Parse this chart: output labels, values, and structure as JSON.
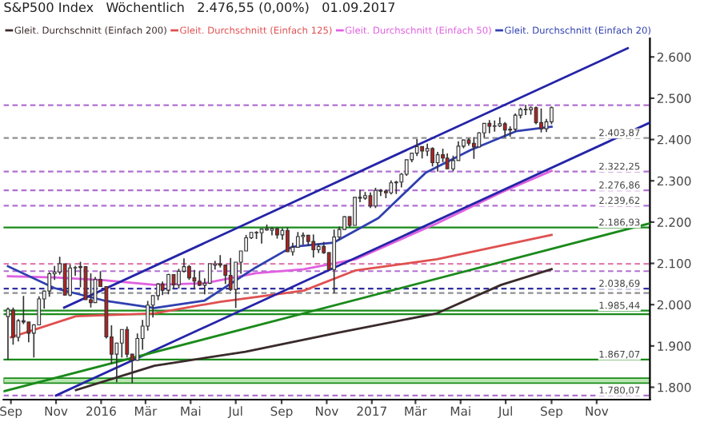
{
  "chart_data": {
    "type": "candlestick",
    "title": "S&P500 Index   Wöchentlich   2.476,55 (0,00%)   01.09.2017",
    "x": [
      "2015-08-28",
      "2015-09-04",
      "2015-09-11",
      "2015-09-18",
      "2015-09-25",
      "2015-10-02",
      "2015-10-09",
      "2015-10-16",
      "2015-10-23",
      "2015-10-30",
      "2015-11-06",
      "2015-11-13",
      "2015-11-20",
      "2015-11-27",
      "2015-12-04",
      "2015-12-11",
      "2015-12-18",
      "2015-12-24",
      "2015-12-31",
      "2016-01-08",
      "2016-01-15",
      "2016-01-22",
      "2016-01-29",
      "2016-02-05",
      "2016-02-12",
      "2016-02-19",
      "2016-02-26",
      "2016-03-04",
      "2016-03-11",
      "2016-03-18",
      "2016-03-24",
      "2016-04-01",
      "2016-04-08",
      "2016-04-15",
      "2016-04-22",
      "2016-04-29",
      "2016-05-06",
      "2016-05-13",
      "2016-05-20",
      "2016-05-27",
      "2016-06-03",
      "2016-06-10",
      "2016-06-17",
      "2016-06-24",
      "2016-07-01",
      "2016-07-08",
      "2016-07-15",
      "2016-07-22",
      "2016-07-29",
      "2016-08-05",
      "2016-08-12",
      "2016-08-19",
      "2016-08-26",
      "2016-09-02",
      "2016-09-09",
      "2016-09-16",
      "2016-09-23",
      "2016-09-30",
      "2016-10-07",
      "2016-10-14",
      "2016-10-21",
      "2016-10-28",
      "2016-11-04",
      "2016-11-11",
      "2016-11-18",
      "2016-11-25",
      "2016-12-02",
      "2016-12-09",
      "2016-12-16",
      "2016-12-23",
      "2016-12-30",
      "2017-01-06",
      "2017-01-13",
      "2017-01-20",
      "2017-01-27",
      "2017-02-03",
      "2017-02-10",
      "2017-02-17",
      "2017-02-24",
      "2017-03-03",
      "2017-03-10",
      "2017-03-17",
      "2017-03-24",
      "2017-03-31",
      "2017-04-07",
      "2017-04-13",
      "2017-04-21",
      "2017-04-28",
      "2017-05-05",
      "2017-05-12",
      "2017-05-19",
      "2017-05-26",
      "2017-06-02",
      "2017-06-09",
      "2017-06-16",
      "2017-06-23",
      "2017-06-30",
      "2017-07-07",
      "2017-07-14",
      "2017-07-21",
      "2017-07-28",
      "2017-08-04",
      "2017-08-11",
      "2017-08-18",
      "2017-08-25",
      "2017-09-01"
    ],
    "ohlc": [
      [
        1971,
        1993,
        1867,
        1989
      ],
      [
        1987,
        1993,
        1903,
        1921
      ],
      [
        1921,
        1965,
        1911,
        1961
      ],
      [
        1961,
        2021,
        1953,
        1958
      ],
      [
        1958,
        1958,
        1909,
        1931
      ],
      [
        1931,
        1953,
        1872,
        1951
      ],
      [
        1951,
        2020,
        1951,
        2014
      ],
      [
        2014,
        2034,
        1990,
        2033
      ],
      [
        2033,
        2079,
        2019,
        2075
      ],
      [
        2075,
        2094,
        2060,
        2079
      ],
      [
        2079,
        2116,
        2073,
        2099
      ],
      [
        2099,
        2099,
        2022,
        2023
      ],
      [
        2023,
        2097,
        2020,
        2089
      ],
      [
        2089,
        2094,
        2070,
        2090
      ],
      [
        2090,
        2104,
        2042,
        2092
      ],
      [
        2092,
        2093,
        2012,
        2012
      ],
      [
        2012,
        2076,
        1993,
        2005
      ],
      [
        2005,
        2067,
        2005,
        2061
      ],
      [
        2061,
        2081,
        2043,
        2044
      ],
      [
        2044,
        2044,
        1918,
        1922
      ],
      [
        1922,
        1950,
        1857,
        1880
      ],
      [
        1880,
        1908,
        1812,
        1907
      ],
      [
        1907,
        1940,
        1872,
        1940
      ],
      [
        1940,
        1947,
        1872,
        1880
      ],
      [
        1880,
        1881,
        1810,
        1865
      ],
      [
        1865,
        1930,
        1865,
        1918
      ],
      [
        1918,
        1963,
        1891,
        1948
      ],
      [
        1948,
        2009,
        1937,
        1999
      ],
      [
        1999,
        2022,
        1969,
        2022
      ],
      [
        2022,
        2052,
        2011,
        2050
      ],
      [
        2050,
        2056,
        2023,
        2035
      ],
      [
        2035,
        2075,
        2025,
        2073
      ],
      [
        2073,
        2073,
        2039,
        2048
      ],
      [
        2048,
        2087,
        2039,
        2081
      ],
      [
        2081,
        2112,
        2078,
        2092
      ],
      [
        2092,
        2096,
        2060,
        2065
      ],
      [
        2065,
        2084,
        2039,
        2057
      ],
      [
        2057,
        2081,
        2045,
        2047
      ],
      [
        2047,
        2064,
        2025,
        2052
      ],
      [
        2052,
        2099,
        2050,
        2099
      ],
      [
        2096,
        2106,
        2085,
        2099
      ],
      [
        2099,
        2120,
        2090,
        2096
      ],
      [
        2096,
        2096,
        2050,
        2071
      ],
      [
        2071,
        2113,
        2033,
        2037
      ],
      [
        2037,
        2103,
        1992,
        2103
      ],
      [
        2103,
        2130,
        2075,
        2130
      ],
      [
        2130,
        2169,
        2130,
        2162
      ],
      [
        2162,
        2175,
        2159,
        2175
      ],
      [
        2175,
        2178,
        2159,
        2174
      ],
      [
        2174,
        2183,
        2148,
        2183
      ],
      [
        2181,
        2194,
        2179,
        2184
      ],
      [
        2180,
        2187,
        2168,
        2184
      ],
      [
        2184,
        2187,
        2160,
        2169
      ],
      [
        2169,
        2185,
        2157,
        2180
      ],
      [
        2180,
        2187,
        2128,
        2128
      ],
      [
        2128,
        2150,
        2119,
        2139
      ],
      [
        2139,
        2176,
        2139,
        2165
      ],
      [
        2165,
        2175,
        2145,
        2168
      ],
      [
        2168,
        2169,
        2142,
        2153
      ],
      [
        2153,
        2170,
        2114,
        2133
      ],
      [
        2133,
        2148,
        2125,
        2141
      ],
      [
        2141,
        2152,
        2123,
        2126
      ],
      [
        2126,
        2127,
        2084,
        2085
      ],
      [
        2085,
        2182,
        2028,
        2164
      ],
      [
        2164,
        2189,
        2156,
        2182
      ],
      [
        2182,
        2214,
        2182,
        2213
      ],
      [
        2213,
        2214,
        2187,
        2192
      ],
      [
        2192,
        2260,
        2192,
        2260
      ],
      [
        2260,
        2278,
        2248,
        2258
      ],
      [
        2258,
        2273,
        2254,
        2264
      ],
      [
        2264,
        2272,
        2234,
        2239
      ],
      [
        2239,
        2283,
        2234,
        2277
      ],
      [
        2277,
        2280,
        2263,
        2275
      ],
      [
        2275,
        2279,
        2258,
        2271
      ],
      [
        2271,
        2301,
        2267,
        2295
      ],
      [
        2295,
        2300,
        2268,
        2297
      ],
      [
        2297,
        2319,
        2284,
        2316
      ],
      [
        2316,
        2351,
        2312,
        2351
      ],
      [
        2351,
        2368,
        2345,
        2367
      ],
      [
        2367,
        2401,
        2360,
        2383
      ],
      [
        2383,
        2383,
        2354,
        2372
      ],
      [
        2372,
        2390,
        2360,
        2378
      ],
      [
        2378,
        2381,
        2335,
        2344
      ],
      [
        2344,
        2370,
        2322,
        2363
      ],
      [
        2363,
        2378,
        2345,
        2355
      ],
      [
        2355,
        2366,
        2329,
        2329
      ],
      [
        2329,
        2361,
        2323,
        2349
      ],
      [
        2349,
        2396,
        2349,
        2384
      ],
      [
        2384,
        2400,
        2379,
        2399
      ],
      [
        2399,
        2403,
        2385,
        2391
      ],
      [
        2391,
        2406,
        2353,
        2382
      ],
      [
        2382,
        2418,
        2382,
        2416
      ],
      [
        2416,
        2440,
        2405,
        2439
      ],
      [
        2439,
        2447,
        2415,
        2432
      ],
      [
        2432,
        2446,
        2419,
        2433
      ],
      [
        2433,
        2454,
        2430,
        2438
      ],
      [
        2438,
        2442,
        2405,
        2423
      ],
      [
        2423,
        2432,
        2407,
        2425
      ],
      [
        2425,
        2463,
        2419,
        2459
      ],
      [
        2459,
        2477,
        2451,
        2473
      ],
      [
        2473,
        2484,
        2459,
        2472
      ],
      [
        2472,
        2480,
        2460,
        2477
      ],
      [
        2477,
        2480,
        2437,
        2441
      ],
      [
        2441,
        2475,
        2417,
        2426
      ],
      [
        2426,
        2450,
        2418,
        2443
      ],
      [
        2443,
        2480,
        2437,
        2477
      ]
    ],
    "colors": [
      "#f2f2f2",
      "#b22222",
      "#f2f2f2",
      "#b22222",
      "#b22222",
      "#f2f2f2",
      "#f2f2f2",
      "#f2f2f2",
      "#f2f2f2",
      "#f2f2f2",
      "#f2f2f2",
      "#b22222",
      "#f2f2f2",
      "#f2f2f2",
      "#f2f2f2",
      "#b22222",
      "#b22222",
      "#f2f2f2",
      "#b22222",
      "#b22222",
      "#b22222",
      "#f2f2f2",
      "#f2f2f2",
      "#b22222",
      "#b22222",
      "#f2f2f2",
      "#f2f2f2",
      "#f2f2f2",
      "#f2f2f2",
      "#f2f2f2",
      "#b22222",
      "#f2f2f2",
      "#b22222",
      "#f2f2f2",
      "#f2f2f2",
      "#b22222",
      "#b22222",
      "#b22222",
      "#f2f2f2",
      "#f2f2f2",
      "#f2f2f2",
      "#b22222",
      "#b22222",
      "#b22222",
      "#f2f2f2",
      "#f2f2f2",
      "#f2f2f2",
      "#f2f2f2",
      "#b22222",
      "#f2f2f2",
      "#f2f2f2",
      "#f2f2f2",
      "#b22222",
      "#f2f2f2",
      "#b22222",
      "#f2f2f2",
      "#f2f2f2",
      "#f2f2f2",
      "#b22222",
      "#b22222",
      "#f2f2f2",
      "#b22222",
      "#b22222",
      "#f2f2f2",
      "#f2f2f2",
      "#f2f2f2",
      "#b22222",
      "#f2f2f2",
      "#b22222",
      "#f2f2f2",
      "#b22222",
      "#f2f2f2",
      "#b22222",
      "#b22222",
      "#f2f2f2",
      "#f2f2f2",
      "#f2f2f2",
      "#f2f2f2",
      "#f2f2f2",
      "#f2f2f2",
      "#b22222",
      "#f2f2f2",
      "#b22222",
      "#f2f2f2",
      "#b22222",
      "#b22222",
      "#f2f2f2",
      "#f2f2f2",
      "#f2f2f2",
      "#b22222",
      "#b22222",
      "#f2f2f2",
      "#f2f2f2",
      "#b22222",
      "#f2f2f2",
      "#f2f2f2",
      "#b22222",
      "#f2f2f2",
      "#f2f2f2",
      "#f2f2f2",
      "#b22222",
      "#f2f2f2",
      "#b22222",
      "#b22222",
      "#f2f2f2",
      "#f2f2f2"
    ],
    "series": [
      {
        "type": "line",
        "name": "Gleit. Durchschnitt (Einfach 200)",
        "color": "#3a2a2a",
        "x": [
          "2015-11-28",
          "2016-03-13",
          "2016-07-14",
          "2016-11-13",
          "2017-03-30",
          "2017-06-25",
          "2017-09-01"
        ],
        "values": [
          1793,
          1852,
          1886,
          1931,
          1979,
          2048,
          2086
        ]
      },
      {
        "type": "line",
        "name": "Gleit. Durchschnitt (Einfach 125)",
        "color": "#e05050",
        "x": [
          "2015-09-01",
          "2015-11-28",
          "2016-03-13",
          "2016-06-10",
          "2016-10-01",
          "2016-12-10",
          "2017-03-30",
          "2017-09-01"
        ],
        "values": [
          1921,
          1972,
          1979,
          2007,
          2034,
          2083,
          2110,
          2169
        ]
      },
      {
        "type": "line",
        "name": "Gleit. Durchschnitt (Einfach 50)",
        "color": "#e060e0",
        "x": [
          "2015-08-28",
          "2015-10-30",
          "2016-01-05",
          "2016-03-13",
          "2016-05-20",
          "2016-07-28",
          "2016-10-01",
          "2016-12-10",
          "2017-03-30",
          "2017-06-25",
          "2017-09-01"
        ],
        "values": [
          2069,
          2066,
          2059,
          2048,
          2052,
          2076,
          2086,
          2110,
          2197,
          2272,
          2324
        ]
      },
      {
        "type": "line",
        "name": "Gleit. Durchschnitt (Einfach 20)",
        "color": "#3040b0",
        "x": [
          "2015-08-28",
          "2015-10-30",
          "2016-01-05",
          "2016-03-13",
          "2016-05-20",
          "2016-07-28",
          "2016-09-15",
          "2016-11-10",
          "2017-01-10",
          "2017-03-15",
          "2017-05-15",
          "2017-07-15",
          "2017-09-01"
        ],
        "values": [
          2093,
          2040,
          2010,
          1992,
          2010,
          2090,
          2140,
          2150,
          2210,
          2320,
          2375,
          2420,
          2431
        ]
      },
      {
        "type": "line",
        "color": "#2424a8",
        "x": [
          "2015-11-12",
          "2017-12-13"
        ],
        "values": [
          1993,
          2621
        ]
      },
      {
        "type": "line",
        "color": "#2424a8",
        "x": [
          "2015-11-01",
          "2018-01-12"
        ],
        "values": [
          1780,
          2441
        ]
      },
      {
        "type": "line",
        "color": "#1a8a1a",
        "x": [
          "2015-08-22",
          "2018-01-12"
        ],
        "values": [
          1790,
          2197
        ]
      }
    ],
    "ref_lines": [
      {
        "axis": "y",
        "value": 2483,
        "color": "#b070d0",
        "line_style": "dashed"
      },
      {
        "axis": "y",
        "value": 2403.87,
        "label": "2.403,87",
        "color": "#909090",
        "line_style": "dashed"
      },
      {
        "axis": "y",
        "value": 2322.25,
        "label": "2.322,25",
        "color": "#b070d0",
        "line_style": "dashed"
      },
      {
        "axis": "y",
        "value": 2276.86,
        "label": "2.276,86",
        "color": "#b070d0",
        "line_style": "dashed"
      },
      {
        "axis": "y",
        "value": 2239.62,
        "label": "2.239,62",
        "color": "#b070d0",
        "line_style": "dashed"
      },
      {
        "axis": "y",
        "value": 2186.93,
        "label": "2.186,93",
        "color": "#1a8a1a",
        "line_style": "solid"
      },
      {
        "axis": "y",
        "value": 2099,
        "color": "#e080b0",
        "line_style": "dashed"
      },
      {
        "axis": "y",
        "value": 2081.18,
        "color": "#b070d0",
        "line_style": "dashed"
      },
      {
        "axis": "y",
        "value": 2038.69,
        "label": "2.038,69",
        "color": "#3030a0",
        "line_style": "dashed"
      },
      {
        "axis": "y",
        "value": 2028,
        "color": "#909090",
        "line_style": "dashed"
      },
      {
        "axis": "y",
        "value": 1985.44,
        "label": "1.985,44",
        "color": "#1a8a1a",
        "line_style": "solid"
      },
      {
        "axis": "y",
        "value": 1977,
        "color": "#1a8a1a",
        "line_style": "solid"
      },
      {
        "axis": "y",
        "value": 1867.07,
        "label": "1.867,07",
        "color": "#1a8a1a",
        "line_style": "solid"
      },
      {
        "axis": "y",
        "value": 1780.07,
        "label": "1.780,07",
        "color": "#b070d0",
        "line_style": "dashed"
      }
    ],
    "bands": [
      {
        "axis": "y",
        "from": 1810,
        "to": 1822,
        "color": "#b8e6b0"
      }
    ],
    "xlim": [
      "2015-08-22",
      "2018-01-12"
    ],
    "xticks": [
      {
        "value": "2015-09-01",
        "label": "Sep"
      },
      {
        "value": "2015-11-01",
        "label": "Nov"
      },
      {
        "value": "2016-01-01",
        "label": "2016"
      },
      {
        "value": "2016-03-01",
        "label": "Mär"
      },
      {
        "value": "2016-05-01",
        "label": "Mai"
      },
      {
        "value": "2016-07-01",
        "label": "Jul"
      },
      {
        "value": "2016-09-01",
        "label": "Sep"
      },
      {
        "value": "2016-11-01",
        "label": "Nov"
      },
      {
        "value": "2017-01-01",
        "label": "2017"
      },
      {
        "value": "2017-03-01",
        "label": "Mär"
      },
      {
        "value": "2017-05-01",
        "label": "Mai"
      },
      {
        "value": "2017-07-01",
        "label": "Jul"
      },
      {
        "value": "2017-09-01",
        "label": "Sep"
      },
      {
        "value": "2017-11-01",
        "label": "Nov"
      }
    ],
    "ylim": [
      1770,
      2645
    ],
    "yticks": [
      {
        "value": 1800,
        "label": "1.800"
      },
      {
        "value": 1900,
        "label": "1.900"
      },
      {
        "value": 2000,
        "label": "2.000"
      },
      {
        "value": 2100,
        "label": "2.100"
      },
      {
        "value": 2200,
        "label": "2.200"
      },
      {
        "value": 2300,
        "label": "2.300"
      },
      {
        "value": 2400,
        "label": "2.400"
      },
      {
        "value": 2500,
        "label": "2.500"
      },
      {
        "value": 2600,
        "label": "2.600"
      }
    ],
    "legend": "top left",
    "grid": false
  }
}
